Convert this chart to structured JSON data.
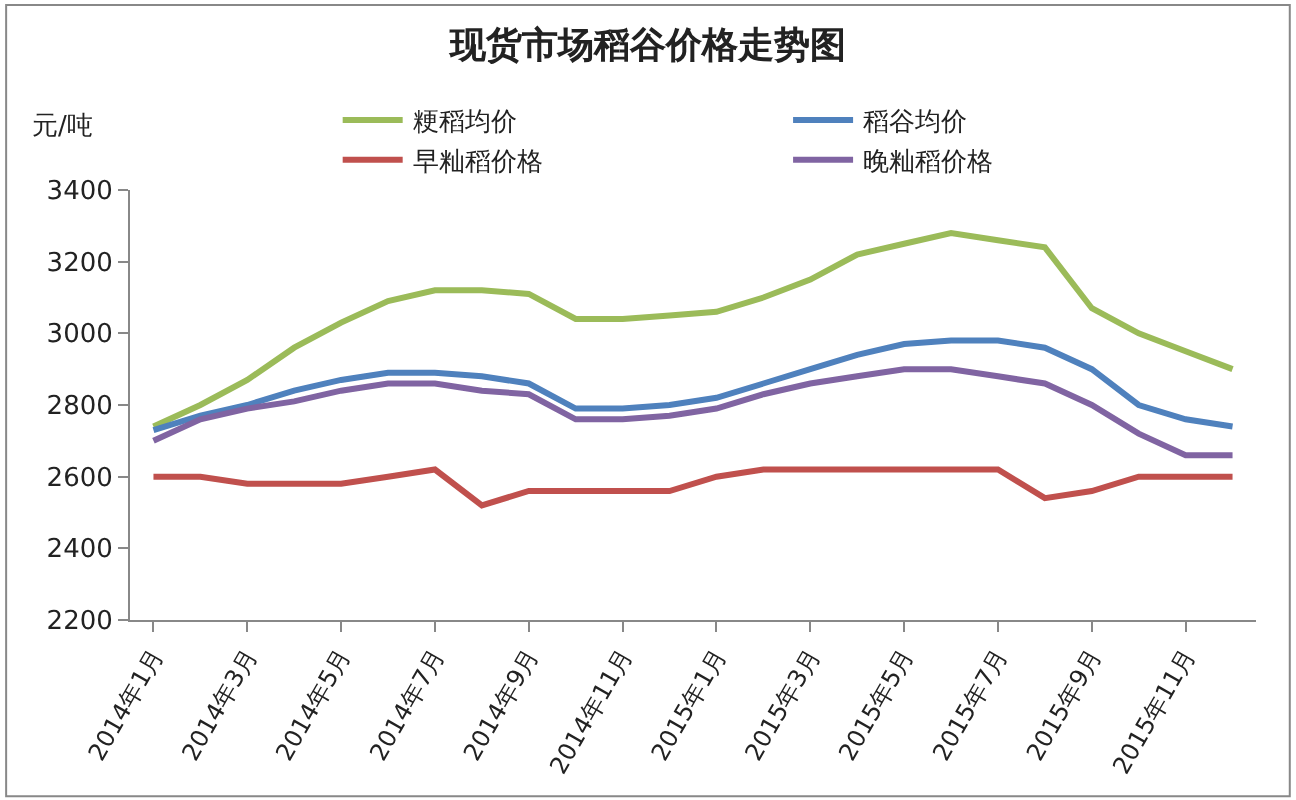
{
  "chart_data": {
    "type": "line",
    "title": "现货市场稻谷价格走势图",
    "ylabel": "元/吨",
    "categories": [
      "2014年1月",
      null,
      "2014年3月",
      null,
      "2014年5月",
      null,
      "2014年7月",
      null,
      "2014年9月",
      null,
      "2014年11月",
      null,
      "2015年1月",
      null,
      "2015年3月",
      null,
      "2015年5月",
      null,
      "2015年7月",
      null,
      "2015年9月",
      null,
      "2015年11月",
      null
    ],
    "series": [
      {
        "name": "粳稻均价",
        "color": "#9bbb59",
        "values": [
          2740,
          2800,
          2870,
          2960,
          3030,
          3090,
          3120,
          3120,
          3110,
          3040,
          3040,
          3050,
          3060,
          3100,
          3150,
          3220,
          3250,
          3280,
          3260,
          3240,
          3070,
          3000,
          2950,
          2900
        ]
      },
      {
        "name": "稻谷均价",
        "color": "#4f81bd",
        "values": [
          2730,
          2770,
          2800,
          2840,
          2870,
          2890,
          2890,
          2880,
          2860,
          2790,
          2790,
          2800,
          2820,
          2860,
          2900,
          2940,
          2970,
          2980,
          2980,
          2960,
          2900,
          2800,
          2760,
          2740
        ]
      },
      {
        "name": "早籼稻价格",
        "color": "#c0504d",
        "values": [
          2600,
          2600,
          2580,
          2580,
          2580,
          2600,
          2620,
          2520,
          2560,
          2560,
          2560,
          2560,
          2600,
          2620,
          2620,
          2620,
          2620,
          2620,
          2620,
          2540,
          2560,
          2600,
          2600,
          2600
        ]
      },
      {
        "name": "晚籼稻价格",
        "color": "#8064a2",
        "values": [
          2700,
          2760,
          2790,
          2810,
          2840,
          2860,
          2860,
          2840,
          2830,
          2760,
          2760,
          2770,
          2790,
          2830,
          2860,
          2880,
          2900,
          2900,
          2880,
          2860,
          2800,
          2720,
          2660,
          2660
        ]
      }
    ],
    "ylim": [
      2200,
      3400
    ],
    "yticks": [
      2200,
      2400,
      2600,
      2800,
      3000,
      3200,
      3400
    ],
    "legend": "top",
    "marker": "none",
    "line_style": "solid"
  }
}
